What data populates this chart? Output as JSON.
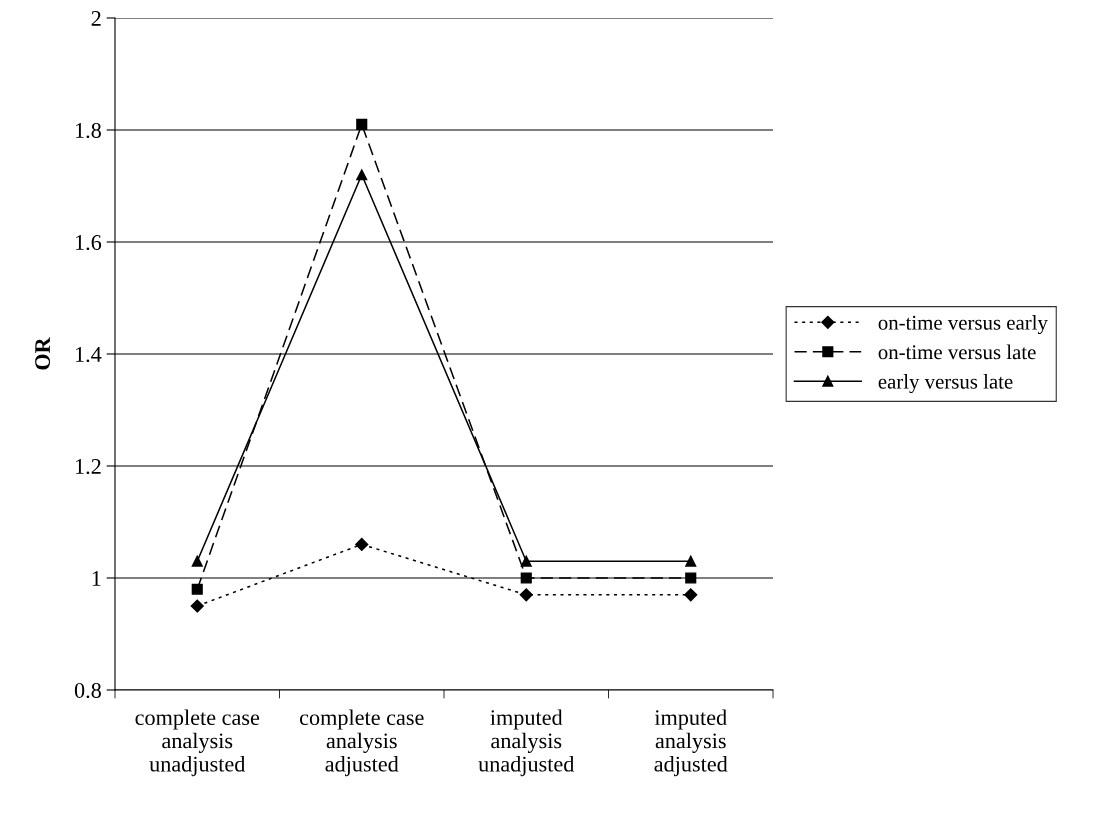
{
  "chart_data": {
    "type": "line",
    "ylabel": "OR",
    "categories": [
      "complete case\nanalysis\nunadjusted",
      "complete case\nanalysis\nadjusted",
      "imputed\nanalysis\nunadjusted",
      "imputed\nanalysis\nadjusted"
    ],
    "series": [
      {
        "name": "on-time versus early",
        "color": "#000000",
        "values": [
          0.95,
          1.06,
          0.97,
          0.97
        ],
        "marker": "diamond",
        "line_style": "dotted"
      },
      {
        "name": "on-time versus late",
        "color": "#000000",
        "values": [
          0.98,
          1.81,
          1.0,
          1.0
        ],
        "marker": "square",
        "line_style": "dashed"
      },
      {
        "name": "early versus late",
        "color": "#000000",
        "values": [
          1.03,
          1.72,
          1.03,
          1.03
        ],
        "marker": "triangle",
        "line_style": "solid"
      }
    ],
    "ylim": [
      0.8,
      2
    ],
    "yticks": [
      0.8,
      1,
      1.2,
      1.4,
      1.6,
      1.8,
      2
    ],
    "grid": "y",
    "legend": "right"
  }
}
